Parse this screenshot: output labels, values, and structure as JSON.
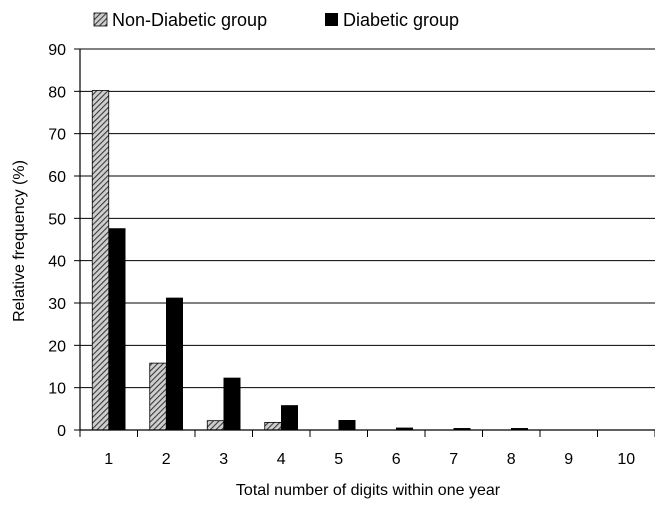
{
  "chart_data": {
    "type": "bar",
    "title": "",
    "xlabel": "Total number of digits within one year",
    "ylabel": "Relative frequency (%)",
    "categories": [
      "1",
      "2",
      "3",
      "4",
      "5",
      "6",
      "7",
      "8",
      "9",
      "10"
    ],
    "ylim": [
      0,
      90
    ],
    "yticks": [
      "0",
      "10",
      "20",
      "30",
      "40",
      "50",
      "60",
      "70",
      "80",
      "90"
    ],
    "grid": "horizontal",
    "legend_position": "top",
    "series": [
      {
        "name": "Non-Diabetic group",
        "pattern": "hatched",
        "color": "#555555",
        "values": [
          80.2,
          15.8,
          2.2,
          1.8,
          0,
          0,
          0,
          0,
          0,
          0
        ]
      },
      {
        "name": "Diabetic group",
        "pattern": "solid",
        "color": "#000000",
        "values": [
          47.6,
          31.2,
          12.3,
          5.8,
          2.3,
          0.5,
          0.4,
          0.4,
          0,
          0
        ]
      }
    ]
  }
}
